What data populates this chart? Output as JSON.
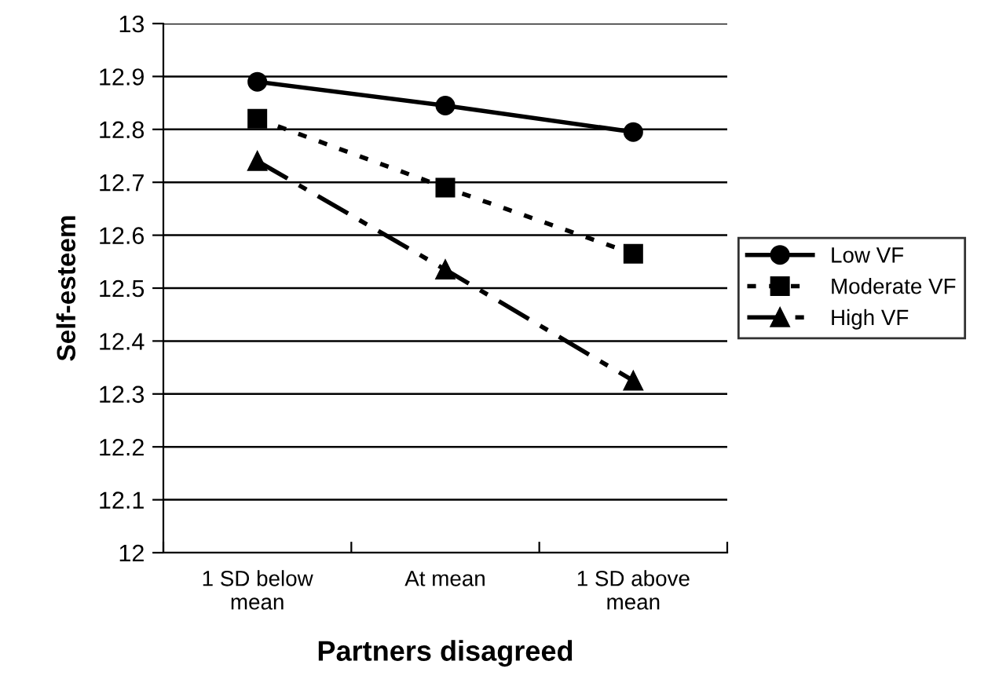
{
  "chart_data": {
    "type": "line",
    "xlabel": "Partners disagreed",
    "ylabel": "Self-esteem",
    "categories": [
      "1 SD below\nmean",
      "At mean",
      "1 SD above\nmean"
    ],
    "series": [
      {
        "name": "Low VF",
        "color": "#000000",
        "values": [
          12.89,
          12.845,
          12.795
        ],
        "marker": "circle",
        "line_style": "solid"
      },
      {
        "name": "Moderate VF",
        "color": "#000000",
        "values": [
          12.82,
          12.69,
          12.565
        ],
        "marker": "square",
        "line_style": "dotted"
      },
      {
        "name": "High VF",
        "color": "#000000",
        "values": [
          12.74,
          12.535,
          12.325
        ],
        "marker": "triangle",
        "line_style": "dashed"
      }
    ],
    "ylim": [
      12,
      13
    ],
    "yticks": [
      12,
      12.1,
      12.2,
      12.3,
      12.4,
      12.5,
      12.6,
      12.7,
      12.8,
      12.9,
      13
    ],
    "grid": "y",
    "legend": "right"
  }
}
